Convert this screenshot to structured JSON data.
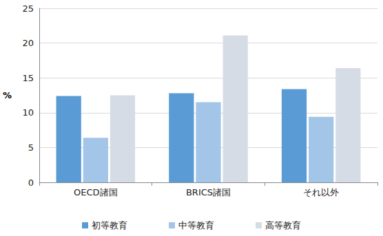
{
  "chart_data": {
    "type": "bar",
    "categories": [
      "OECD諸国",
      "BRICS諸国",
      "それ以外"
    ],
    "series": [
      {
        "name": "初等教育",
        "color": "#5b9bd5",
        "values": [
          12.4,
          12.8,
          13.4
        ]
      },
      {
        "name": "中等教育",
        "color": "#a3c5e8",
        "values": [
          6.4,
          11.5,
          9.4
        ]
      },
      {
        "name": "高等教育",
        "color": "#d6dce6",
        "values": [
          12.5,
          21.1,
          16.4
        ]
      }
    ],
    "y_label": "%",
    "ylim": [
      0,
      25
    ],
    "yticks": [
      0,
      5,
      10,
      15,
      20,
      25
    ],
    "grid": true,
    "legend": "bottom"
  }
}
